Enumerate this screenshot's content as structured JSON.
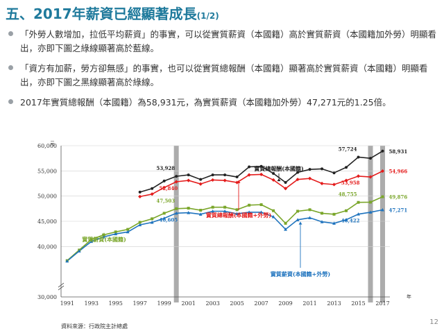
{
  "page": {
    "title": "五、2017年薪資已經顯著成長",
    "title_sub": "(1/2)",
    "bullets": [
      "「外勞人數增加，拉低平均薪資」的事實，可以從實質薪資（本國籍）高於實質薪資（本國籍加外勞）明顯看出，亦即下圖之綠線顯著高於藍線。",
      "「資方有加薪，勞方卻無感」的事實，也可以從實質總報酬（本國籍）顯著高於實質薪資（本國籍）明顯看出，亦即下圖之黑線顯著高於綠線。",
      "2017年實質總報酬（本國籍）為58,931元，為實質薪資（本國籍加外勞）47,271元的1.25倍。"
    ],
    "source": "資料來源：行政院主計總處",
    "page_number": "12",
    "colors": {
      "title": "#1f7a9c",
      "black": "#222222",
      "red": "#e41c1c",
      "green": "#7aa62a",
      "blue": "#1e73be"
    }
  },
  "chart_data": {
    "type": "line",
    "x_unit": "年",
    "y_unit": "元",
    "ylim": [
      30000,
      60000
    ],
    "xlim": [
      1990.5,
      2017.6
    ],
    "x_ticks": [
      "1991",
      "1993",
      "1995",
      "1997",
      "1999",
      "2001",
      "2003",
      "2005",
      "2007",
      "2009",
      "2011",
      "2013",
      "2015",
      "2017"
    ],
    "y_ticks": [
      "30,000",
      "40,000",
      "45,000",
      "50,000",
      "55,000",
      "60,000"
    ],
    "grid": true,
    "shaded_years": [
      2000,
      2016,
      2017
    ],
    "series": [
      {
        "name": "實質總報酬(本國籍)",
        "color": "#222222",
        "marker": "circle",
        "x": [
          1997,
          1998,
          1999,
          2000,
          2001,
          2002,
          2003,
          2004,
          2005,
          2006,
          2007,
          2008,
          2009,
          2010,
          2011,
          2012,
          2013,
          2014,
          2015,
          2016,
          2017
        ],
        "y": [
          50800,
          51500,
          53000,
          53928,
          54200,
          53300,
          54200,
          54200,
          53800,
          55800,
          55900,
          54500,
          52700,
          54700,
          55300,
          55400,
          54600,
          55700,
          57724,
          57500,
          58931
        ]
      },
      {
        "name": "實質總報酬(本國籍+外勞)",
        "color": "#e41c1c",
        "marker": "diamond",
        "x": [
          1997,
          1998,
          1999,
          2000,
          2001,
          2002,
          2003,
          2004,
          2005,
          2006,
          2007,
          2008,
          2009,
          2010,
          2011,
          2012,
          2013,
          2014,
          2015,
          2016,
          2017
        ],
        "y": [
          49900,
          50400,
          51700,
          52840,
          53100,
          52400,
          53200,
          53100,
          52700,
          54200,
          54300,
          53200,
          51500,
          53300,
          53500,
          52500,
          52300,
          53100,
          53958,
          53800,
          54966
        ]
      },
      {
        "name": "實質薪資(本國籍)",
        "color": "#7aa62a",
        "marker": "square",
        "x": [
          1991,
          1992,
          1993,
          1994,
          1995,
          1996,
          1997,
          1998,
          1999,
          2000,
          2001,
          2002,
          2003,
          2004,
          2005,
          2006,
          2007,
          2008,
          2009,
          2010,
          2011,
          2012,
          2013,
          2014,
          2015,
          2016,
          2017
        ],
        "y": [
          37200,
          39300,
          41400,
          42300,
          42900,
          43400,
          44800,
          45500,
          46600,
          47503,
          47600,
          47200,
          47800,
          47800,
          47300,
          48200,
          48300,
          47100,
          44600,
          47000,
          47300,
          46600,
          46400,
          47100,
          48755,
          48800,
          49876
        ]
      },
      {
        "name": "實質薪資(本國籍+外勞)",
        "color": "#1e73be",
        "marker": "triangle",
        "x": [
          1991,
          1992,
          1993,
          1994,
          1995,
          1996,
          1997,
          1998,
          1999,
          2000,
          2001,
          2002,
          2003,
          2004,
          2005,
          2006,
          2007,
          2008,
          2009,
          2010,
          2011,
          2012,
          2013,
          2014,
          2015,
          2016,
          2017
        ],
        "y": [
          37100,
          39100,
          41000,
          41900,
          42500,
          42900,
          44300,
          44800,
          45600,
          46605,
          46700,
          46400,
          47000,
          47000,
          46500,
          46800,
          46800,
          45900,
          43400,
          45300,
          45700,
          44900,
          44600,
          45300,
          46422,
          46800,
          47271
        ]
      }
    ],
    "point_labels": [
      {
        "series": 0,
        "year": 2000,
        "text": "53,928"
      },
      {
        "series": 0,
        "year": 2015,
        "text": "57,724"
      },
      {
        "series": 0,
        "year": 2017,
        "text": "58,931"
      },
      {
        "series": 1,
        "year": 2000,
        "text": "52,840"
      },
      {
        "series": 1,
        "year": 2015,
        "text": "53,958"
      },
      {
        "series": 1,
        "year": 2017,
        "text": "54,966"
      },
      {
        "series": 2,
        "year": 2000,
        "text": "47,503"
      },
      {
        "series": 2,
        "year": 2015,
        "text": "48,755"
      },
      {
        "series": 2,
        "year": 2017,
        "text": "49,876"
      },
      {
        "series": 3,
        "year": 2000,
        "text": "46,605"
      },
      {
        "series": 3,
        "year": 2015,
        "text": "46,422"
      },
      {
        "series": 3,
        "year": 2017,
        "text": "47,271"
      }
    ]
  }
}
